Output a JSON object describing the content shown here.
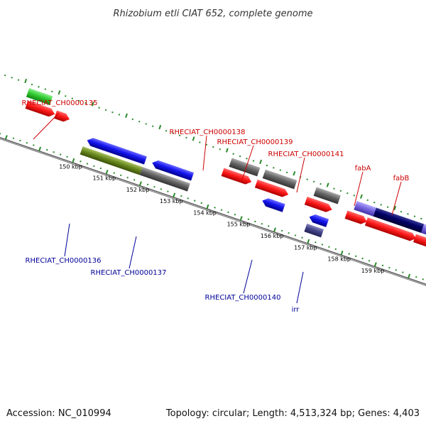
{
  "title": "Rhizobium etli CIAT 652, complete genome",
  "footer": {
    "accession": "Accession: NC_010994",
    "topology": "Topology: circular; Length: 4,513,324 bp; Genes: 4,403"
  },
  "colors": {
    "backbone": "#888888",
    "tick": "#2a8a2a",
    "top_label": "#cc0000",
    "bottom_label": "#000099",
    "red_gene": "#ff0000",
    "blue_gene": "#1515ee",
    "gray_gene": "#666666",
    "olive_gene": "#6a8a20",
    "green_gene": "#33cc33",
    "light_purple": "#7766dd",
    "navy_gene": "#000066",
    "slate_gene": "#44448a"
  },
  "scale": {
    "labels": [
      "150 kbp",
      "151 kbp",
      "152 kbp",
      "153 kbp",
      "154 kbp",
      "155 kbp",
      "156 kbp",
      "157 kbp",
      "158 kbp",
      "159 kbp"
    ]
  },
  "genes": {
    "top_labels": [
      "RHECIAT_CH0000135",
      "RHECIAT_CH0000138",
      "RHECIAT_CH0000139",
      "RHECIAT_CH0000141",
      "fabA",
      "fabB"
    ],
    "bottom_labels": [
      "RHECIAT_CH0000136",
      "RHECIAT_CH0000137",
      "RHECIAT_CH0000140",
      "irr"
    ]
  }
}
